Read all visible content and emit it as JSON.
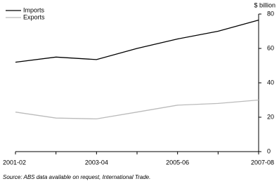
{
  "chart_data": {
    "type": "line",
    "y_label": "$ billion",
    "source": "Source: ABS data available on request, International Trade.",
    "categories": [
      "2001-02",
      null,
      "2003-04",
      null,
      "2005-06",
      null,
      "2007-08"
    ],
    "series": [
      {
        "name": "Imports",
        "color": "#000000",
        "values": [
          52,
          55,
          53.5,
          60,
          65.5,
          70,
          76.5
        ]
      },
      {
        "name": "Exports",
        "color": "#bbbbbb",
        "values": [
          23,
          19.5,
          19,
          23,
          27,
          28,
          30
        ]
      }
    ],
    "ylim": [
      0,
      80
    ],
    "yticks": [
      0,
      20,
      40,
      60,
      80
    ],
    "grid": false,
    "legend": "top-left"
  }
}
